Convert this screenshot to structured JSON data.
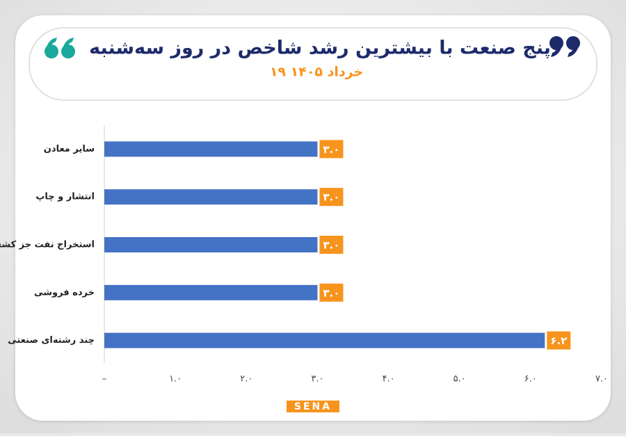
{
  "chart_data": {
    "type": "hbar",
    "title": "پنج صنعت با بیشترین رشد شاخص در روز سه‌شنبه",
    "subtitle": "۱۹ خرداد ۱۴۰۵",
    "categories": [
      "سایر معادن",
      "انتشار و چاپ",
      "استخراج نفت جز کشف",
      "خرده فروشی",
      "چند رشته‌ای صنعتی"
    ],
    "values": [
      3.0,
      3.0,
      3.0,
      3.0,
      6.2
    ],
    "value_labels": [
      "۳.۰",
      "۳.۰",
      "۳.۰",
      "۳.۰",
      "۶.۲"
    ],
    "color": "#4472c4",
    "label_color": "#f7941d",
    "xlim": [
      0,
      7
    ],
    "xticks": [
      {
        "value": 0,
        "label": "–"
      },
      {
        "value": 1,
        "label": "۱.۰"
      },
      {
        "value": 2,
        "label": "۲.۰"
      },
      {
        "value": 3,
        "label": "۳.۰"
      },
      {
        "value": 4,
        "label": "۴.۰"
      },
      {
        "value": 5,
        "label": "۵.۰"
      },
      {
        "value": 6,
        "label": "۶.۰"
      },
      {
        "value": 7,
        "label": "۷.۰"
      }
    ],
    "logo": "SENA"
  }
}
